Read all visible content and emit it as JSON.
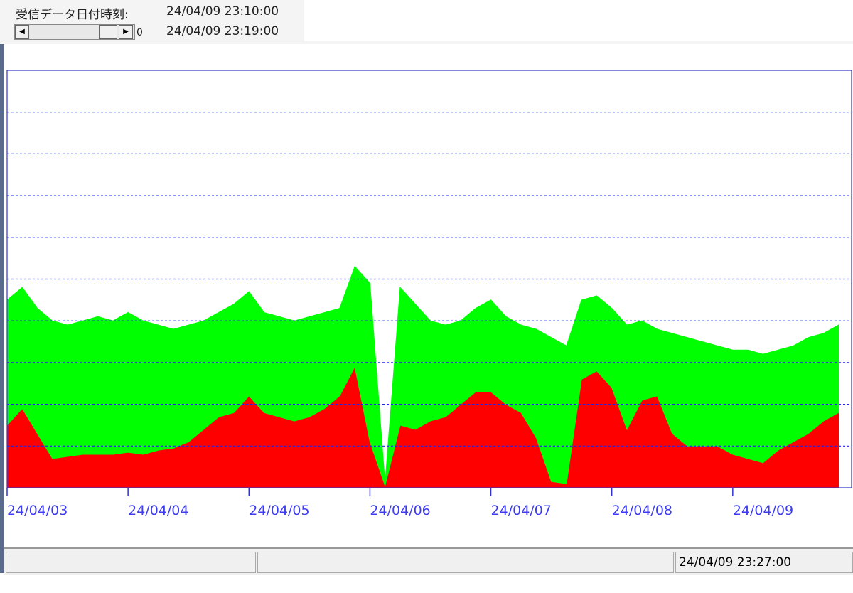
{
  "header": {
    "label": "受信データ日付時刻:",
    "time_from": "24/04/09 23:10:00",
    "time_to": "24/04/09 23:19:00",
    "scroll_value": "0"
  },
  "status": {
    "time": "24/04/09 23:27:00"
  },
  "chart_data": {
    "type": "stacked-area",
    "x": [
      0,
      3,
      6,
      9,
      12,
      15,
      18,
      21,
      24,
      27,
      30,
      33,
      36,
      39,
      42,
      45,
      48,
      51,
      54,
      57,
      60,
      63,
      66,
      69,
      72,
      75,
      78,
      81,
      84,
      87,
      90,
      93,
      96,
      99,
      102,
      105,
      108,
      111,
      114,
      117,
      120,
      123,
      126,
      129,
      132,
      135,
      138,
      141,
      144,
      147,
      150,
      153,
      156,
      159,
      162,
      165
    ],
    "xlim": [
      0,
      167.3
    ],
    "xticks": [
      {
        "value": 0,
        "label": "24/04/03"
      },
      {
        "value": 24,
        "label": "24/04/04"
      },
      {
        "value": 48,
        "label": "24/04/05"
      },
      {
        "value": 72,
        "label": "24/04/06"
      },
      {
        "value": 96,
        "label": "24/04/07"
      },
      {
        "value": 120,
        "label": "24/04/08"
      },
      {
        "value": 144,
        "label": "24/04/09"
      }
    ],
    "ylim": [
      0,
      10
    ],
    "yticks": [
      1,
      2,
      3,
      4,
      5,
      6,
      7,
      8,
      9
    ],
    "grid": true,
    "series": [
      {
        "color": "#ff0000",
        "values": [
          1.5,
          1.9,
          1.3,
          0.7,
          0.75,
          0.8,
          0.8,
          0.8,
          0.85,
          0.8,
          0.9,
          0.95,
          1.1,
          1.4,
          1.7,
          1.8,
          2.2,
          1.8,
          1.7,
          1.6,
          1.7,
          1.9,
          2.2,
          2.9,
          1.1,
          0.05,
          1.5,
          1.4,
          1.6,
          1.7,
          2.0,
          2.3,
          2.3,
          2.0,
          1.8,
          1.2,
          0.15,
          0.1,
          2.6,
          2.8,
          2.4,
          1.4,
          2.1,
          2.2,
          1.3,
          1.0,
          1.0,
          1.0,
          0.8,
          0.7,
          0.6,
          0.9,
          1.1,
          1.3,
          1.6,
          1.8
        ]
      },
      {
        "color": "#00ff00",
        "values": [
          3.0,
          2.9,
          3.0,
          3.3,
          3.15,
          3.2,
          3.3,
          3.2,
          3.35,
          3.2,
          3.0,
          2.85,
          2.8,
          2.6,
          2.5,
          2.6,
          2.5,
          2.4,
          2.4,
          2.4,
          2.4,
          2.3,
          2.1,
          2.4,
          3.8,
          0.05,
          3.3,
          3.0,
          2.4,
          2.2,
          2.0,
          2.0,
          2.2,
          2.1,
          2.1,
          2.6,
          3.45,
          3.3,
          1.9,
          1.8,
          1.9,
          2.5,
          1.9,
          1.6,
          2.4,
          2.6,
          2.5,
          2.4,
          2.5,
          2.6,
          2.6,
          2.4,
          2.3,
          2.3,
          2.1,
          2.1
        ]
      }
    ]
  }
}
